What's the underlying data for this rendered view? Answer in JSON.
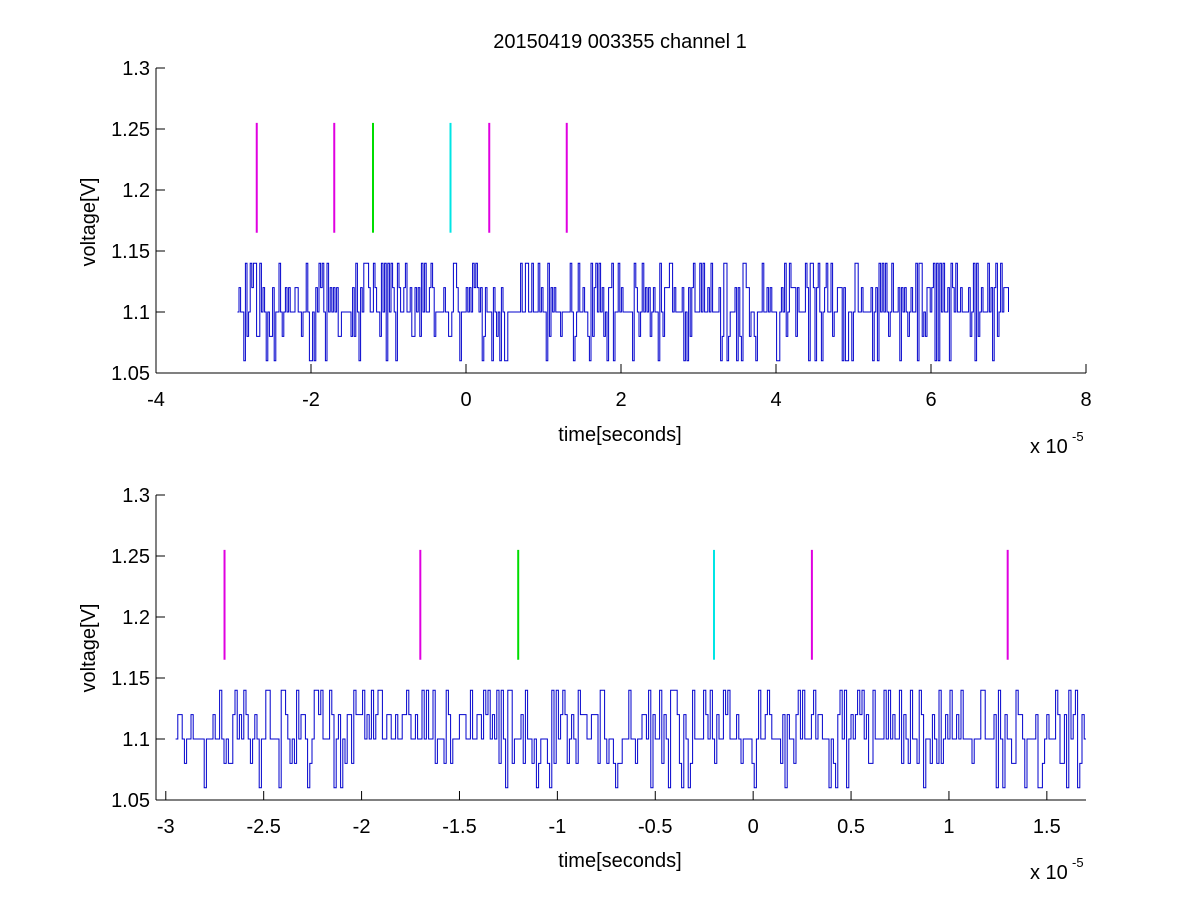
{
  "chart_data": [
    {
      "type": "line",
      "title": "20150419 003355 channel 1",
      "xlabel": "time[seconds]",
      "ylabel": "voltage[V]",
      "x_exponent_label": "x 10",
      "x_exponent": "-5",
      "xlim": [
        -4,
        8
      ],
      "ylim": [
        1.05,
        1.3
      ],
      "xticks": [
        -4,
        -2,
        0,
        2,
        4,
        6,
        8
      ],
      "xtick_labels": [
        "-4",
        "-2",
        "0",
        "2",
        "4",
        "6",
        "8"
      ],
      "yticks": [
        1.05,
        1.1,
        1.15,
        1.2,
        1.25,
        1.3
      ],
      "ytick_labels": [
        "1.05",
        "1.1",
        "1.15",
        "1.2",
        "1.25",
        "1.3"
      ],
      "grid": false,
      "signal": {
        "color": "#0000cc",
        "x_start": -2.95,
        "x_end": 7.0,
        "levels": [
          1.06,
          1.08,
          1.1,
          1.12,
          1.14
        ],
        "baseline": 1.1
      },
      "markers": [
        {
          "x": -2.7,
          "y_range": [
            1.165,
            1.255
          ],
          "color": "#e000e0"
        },
        {
          "x": -1.7,
          "y_range": [
            1.165,
            1.255
          ],
          "color": "#e000e0"
        },
        {
          "x": -1.2,
          "y_range": [
            1.165,
            1.255
          ],
          "color": "#00dd00"
        },
        {
          "x": -0.2,
          "y_range": [
            1.165,
            1.255
          ],
          "color": "#00e5e5"
        },
        {
          "x": 0.3,
          "y_range": [
            1.165,
            1.255
          ],
          "color": "#e000e0"
        },
        {
          "x": 1.3,
          "y_range": [
            1.165,
            1.255
          ],
          "color": "#e000e0"
        }
      ]
    },
    {
      "type": "line",
      "xlabel": "time[seconds]",
      "ylabel": "voltage[V]",
      "x_exponent_label": "x 10",
      "x_exponent": "-5",
      "xlim": [
        -3.05,
        1.7
      ],
      "ylim": [
        1.05,
        1.3
      ],
      "xticks": [
        -3,
        -2.5,
        -2,
        -1.5,
        -1,
        -0.5,
        0,
        0.5,
        1,
        1.5
      ],
      "xtick_labels": [
        "-3",
        "-2.5",
        "-2",
        "-1.5",
        "-1",
        "-0.5",
        "0",
        "0.5",
        "1",
        "1.5"
      ],
      "yticks": [
        1.05,
        1.1,
        1.15,
        1.2,
        1.25,
        1.3
      ],
      "ytick_labels": [
        "1.05",
        "1.1",
        "1.15",
        "1.2",
        "1.25",
        "1.3"
      ],
      "grid": false,
      "signal": {
        "color": "#0000cc",
        "x_start": -2.95,
        "x_end": 1.7,
        "levels": [
          1.06,
          1.08,
          1.1,
          1.12,
          1.14
        ],
        "baseline": 1.1
      },
      "markers": [
        {
          "x": -2.7,
          "y_range": [
            1.165,
            1.255
          ],
          "color": "#e000e0"
        },
        {
          "x": -1.7,
          "y_range": [
            1.165,
            1.255
          ],
          "color": "#e000e0"
        },
        {
          "x": -1.2,
          "y_range": [
            1.165,
            1.255
          ],
          "color": "#00dd00"
        },
        {
          "x": -0.2,
          "y_range": [
            1.165,
            1.255
          ],
          "color": "#00e5e5"
        },
        {
          "x": 0.3,
          "y_range": [
            1.165,
            1.255
          ],
          "color": "#e000e0"
        },
        {
          "x": 1.3,
          "y_range": [
            1.165,
            1.255
          ],
          "color": "#e000e0"
        }
      ]
    }
  ]
}
